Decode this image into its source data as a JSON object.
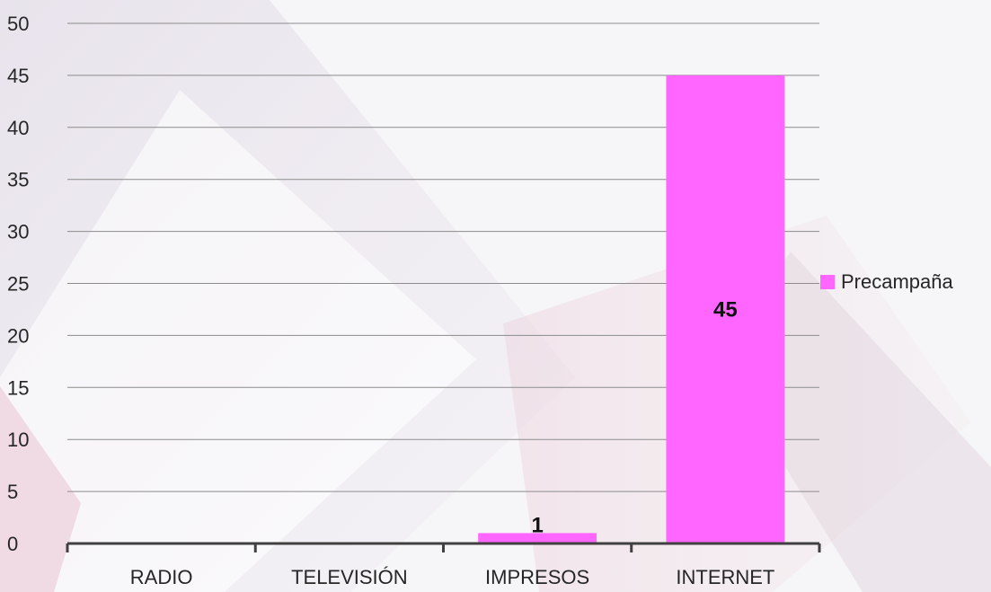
{
  "chart_data": {
    "type": "bar",
    "categories": [
      "RADIO",
      "TELEVISIÓN",
      "IMPRESOS",
      "INTERNET"
    ],
    "series": [
      {
        "name": "Precampaña",
        "values": [
          0,
          0,
          1,
          45
        ],
        "data_labels": [
          "",
          "",
          "1",
          "45"
        ]
      }
    ],
    "yticks": [
      "0",
      "5",
      "10",
      "15",
      "20",
      "25",
      "30",
      "35",
      "40",
      "45",
      "50"
    ],
    "ylim": [
      0,
      50
    ],
    "grid": true,
    "legend": "right",
    "title": "",
    "xlabel": "",
    "ylabel": ""
  },
  "colors": {
    "bar": "#ff66ff",
    "grid": "#8c8c8c",
    "axis": "#404040",
    "text": "#262626"
  }
}
